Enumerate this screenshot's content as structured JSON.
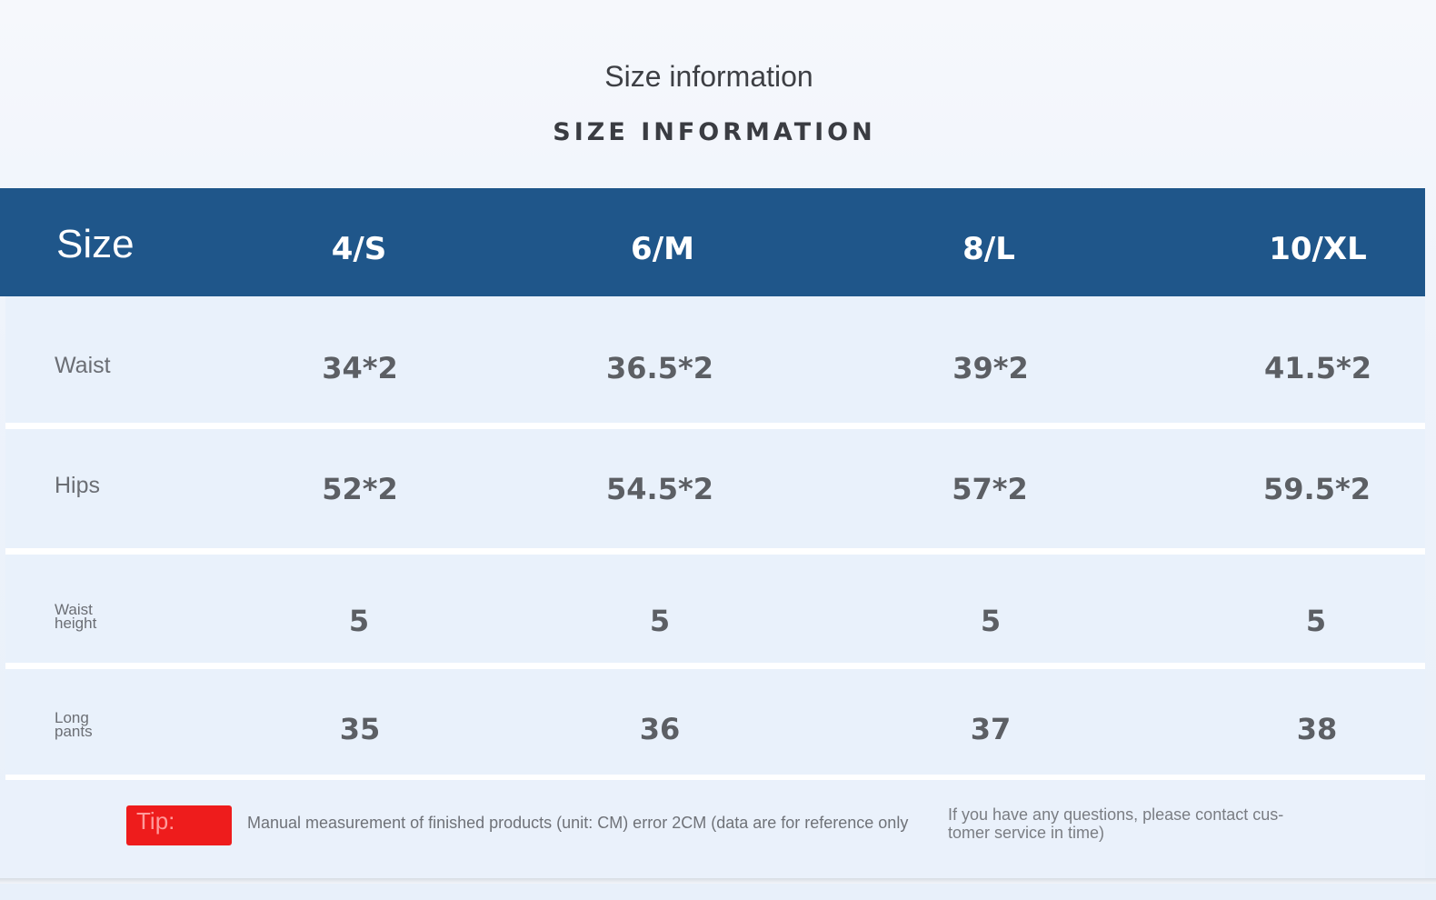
{
  "title": "Size information",
  "subtitle": "SIZE INFORMATION",
  "table": {
    "header_label": "Size",
    "sizes": [
      "4/S",
      "6/M",
      "8/L",
      "10/XL"
    ],
    "rows": [
      {
        "label": "Waist",
        "values": [
          "34*2",
          "36.5*2",
          "39*2",
          "41.5*2"
        ]
      },
      {
        "label": "Hips",
        "values": [
          "52*2",
          "54.5*2",
          "57*2",
          "59.5*2"
        ]
      },
      {
        "label": "Waist height",
        "values": [
          "5",
          "5",
          "5",
          "5"
        ]
      },
      {
        "label": "Long pants",
        "values": [
          "35",
          "36",
          "37",
          "38"
        ]
      }
    ]
  },
  "footer": {
    "tip_label": "Tip:",
    "measurement_note": "Manual measurement of finished products (unit: CM) error 2CM (data are for reference only",
    "contact_note": "If you have any questions, please contact cus- tomer service in time)"
  },
  "colors": {
    "header_bg": "#1f568a",
    "row_bg": "#e9f1fb",
    "tip_bg": "#ee1c1c"
  }
}
